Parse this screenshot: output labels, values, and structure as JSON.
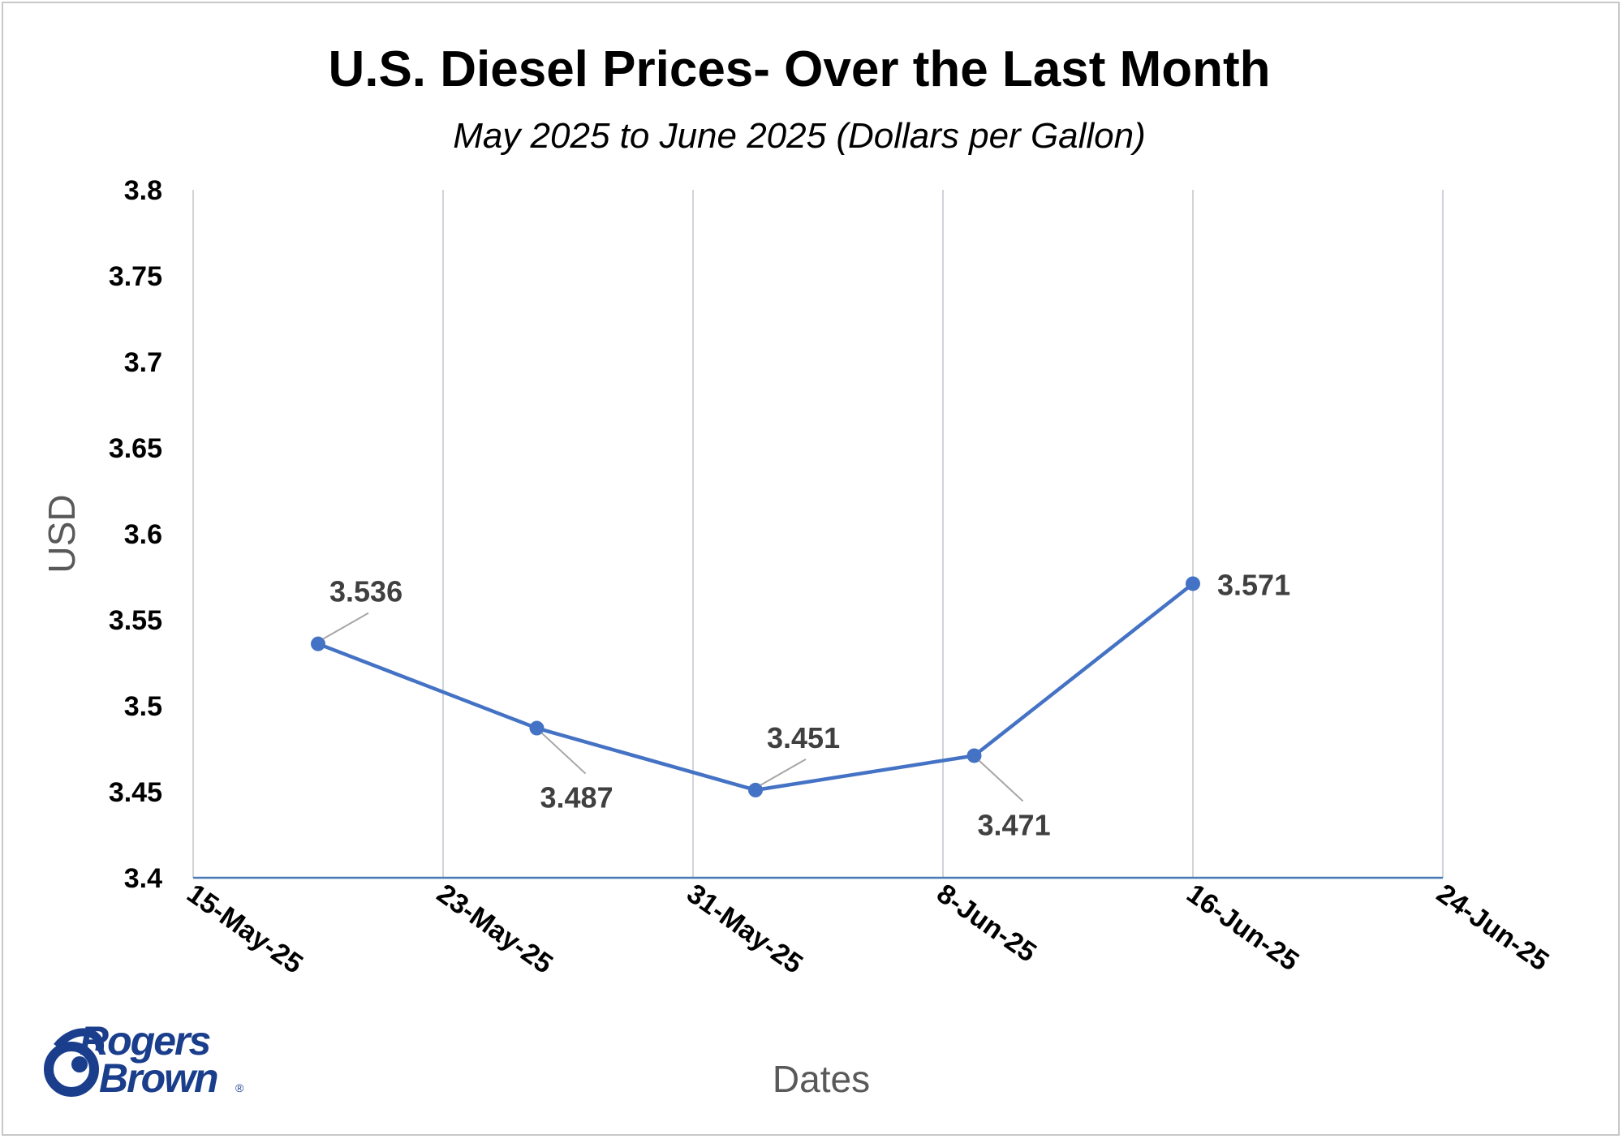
{
  "chart_data": {
    "type": "line",
    "title": "U.S. Diesel Prices- Over the Last Month",
    "subtitle": "May 2025 to June 2025 (Dollars per Gallon)",
    "xlabel": "Dates",
    "ylabel": "USD",
    "x_ticks": [
      "15-May-25",
      "23-May-25",
      "31-May-25",
      "8-Jun-25",
      "16-Jun-25",
      "24-Jun-25"
    ],
    "x_tick_values": [
      "2025-05-15",
      "2025-05-23",
      "2025-05-31",
      "2025-06-08",
      "2025-06-16",
      "2025-06-24"
    ],
    "xlim": [
      "2025-05-15",
      "2025-06-24"
    ],
    "y_ticks": [
      "3.4",
      "3.45",
      "3.5",
      "3.55",
      "3.6",
      "3.65",
      "3.7",
      "3.75",
      "3.8"
    ],
    "ylim": [
      3.4,
      3.8
    ],
    "grid": "vertical",
    "legend": "none",
    "series": [
      {
        "color": "#4472c4",
        "points": [
          {
            "x": "2025-05-19",
            "y": 3.536,
            "label": "3.536",
            "label_pos": "above-right"
          },
          {
            "x": "2025-05-26",
            "y": 3.487,
            "label": "3.487",
            "label_pos": "below-right"
          },
          {
            "x": "2025-06-02",
            "y": 3.451,
            "label": "3.451",
            "label_pos": "above-right"
          },
          {
            "x": "2025-06-09",
            "y": 3.471,
            "label": "3.471",
            "label_pos": "below-right"
          },
          {
            "x": "2025-06-16",
            "y": 3.571,
            "label": "3.571",
            "label_pos": "right"
          }
        ]
      }
    ]
  },
  "logo": {
    "line1": "Rogers",
    "line2": "Brown",
    "mark": "®"
  }
}
